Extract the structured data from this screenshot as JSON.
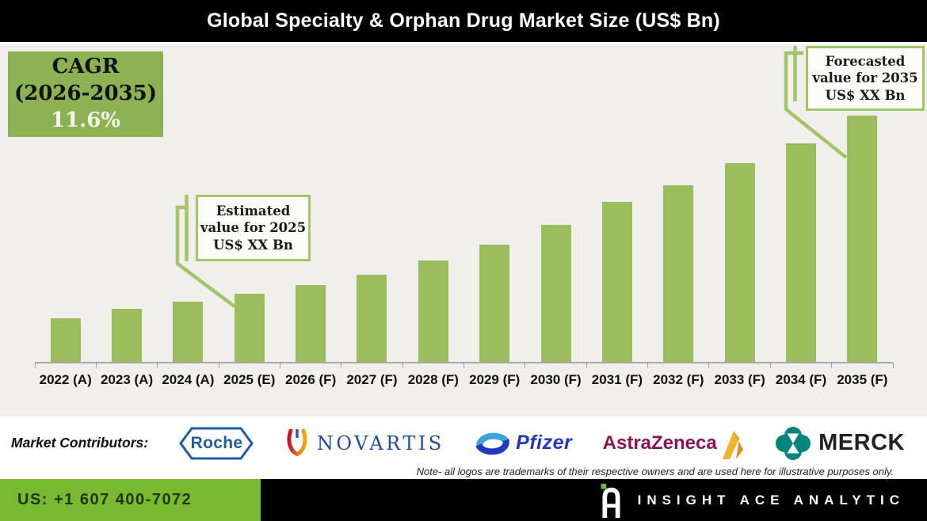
{
  "header": {
    "title": "Global Specialty & Orphan Drug Market Size (US$ Bn)"
  },
  "chart": {
    "cagr_box": {
      "line1": "CAGR",
      "line2": "(2026-2035)",
      "line3": "11.6%"
    },
    "callouts": {
      "estimated": {
        "line1": "Estimated",
        "line2": "value for 2025",
        "line3": "US$ XX Bn"
      },
      "forecasted": {
        "line1": "Forecasted",
        "line2": "value for 2035",
        "line3": "US$ XX Bn"
      }
    }
  },
  "chart_data": {
    "type": "bar",
    "title": "Global Specialty & Orphan Drug Market Size (US$ Bn)",
    "categories": [
      "2022 (A)",
      "2023 (A)",
      "2024 (A)",
      "2025 (E)",
      "2026 (F)",
      "2027 (F)",
      "2028 (F)",
      "2029 (F)",
      "2030 (F)",
      "2031 (F)",
      "2032 (F)",
      "2033 (F)",
      "2034 (F)",
      "2035 (F)"
    ],
    "values": [
      55,
      67,
      76,
      86,
      97,
      110,
      128,
      148,
      173,
      202,
      223,
      251,
      276,
      311
    ],
    "values_note": "Actual US$ Bn values are masked as 'XX' in the source; values given are relative bar heights (px).",
    "xlabel": "",
    "ylabel": "",
    "y_axis_shown": false,
    "grid": false,
    "legend": false,
    "bar_color": "#9cbd5d"
  },
  "contributors": {
    "label": "Market Contributors:",
    "logos": [
      {
        "name": "roche",
        "text": "Roche"
      },
      {
        "name": "novartis",
        "text": "NOVARTIS"
      },
      {
        "name": "pfizer",
        "text": "Pfizer"
      },
      {
        "name": "astrazeneca",
        "text": "AstraZeneca"
      },
      {
        "name": "merck",
        "text": "MERCK"
      }
    ],
    "note": "Note- all logos are trademarks of their respective owners and are used here for illustrative purposes only."
  },
  "footer": {
    "phone": "US: +1 607 400-7072",
    "brand": "INSIGHT ACE ANALYTIC"
  },
  "colors": {
    "header_bg": "#000000",
    "chart_bg": "#f0efec",
    "bar": "#9cbd5d",
    "accent_line": "#a2c566",
    "cagr_bg": "#8db254",
    "footer_green": "#79b92f",
    "roche_blue": "#1e5ca6",
    "novartis_blue": "#1f4da0",
    "pfizer_blue": "#2437c0",
    "astrazeneca_mulberry": "#8c1257",
    "astrazeneca_gold": "#f0b429",
    "merck_teal": "#00857c"
  }
}
